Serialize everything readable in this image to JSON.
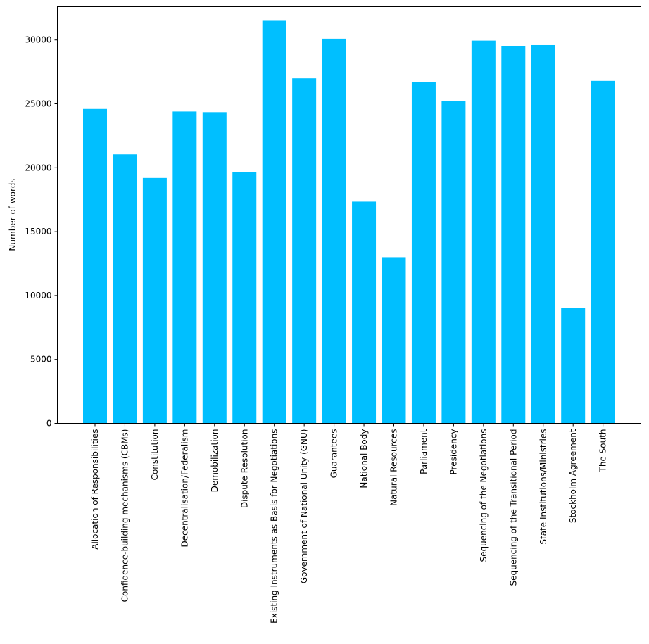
{
  "chart_data": {
    "type": "bar",
    "title": "",
    "xlabel": "",
    "ylabel": "Number of words",
    "ylim": [
      0,
      32600
    ],
    "yticks": [
      0,
      5000,
      10000,
      15000,
      20000,
      25000,
      30000
    ],
    "grid": false,
    "bar_color": "#00bfff",
    "categories": [
      "Allocation of Responsibilities",
      "Confidence-building mechanisms (CBMs)",
      "Constitution",
      "Decentralisation/Federalism",
      "Demobilization",
      "Dispute Resolution",
      "Existing Instruments as Basis for Negotiations",
      "Government of National Unity (GNU)",
      "Guarantees",
      "National Body",
      "Natural Resources",
      "Parliament",
      "Presidency",
      "Sequencing of the Negotiations",
      "Sequencing of the Transitional Period",
      "State Institutions/Ministries",
      "Stockholm Agreement",
      "The South"
    ],
    "values": [
      24600,
      21050,
      19200,
      24400,
      24350,
      19650,
      31500,
      27000,
      30100,
      17350,
      13000,
      26700,
      25200,
      29950,
      29500,
      29600,
      9050,
      26800
    ]
  }
}
